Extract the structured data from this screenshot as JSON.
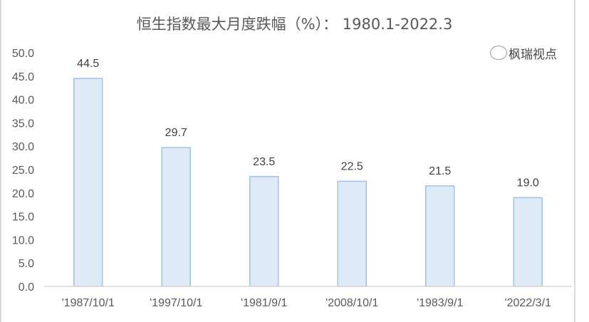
{
  "chart_data": {
    "type": "bar",
    "title": "恒生指数最大月度跌幅（%）： 1980.1-2022.3",
    "categories": [
      "'1987/10/1",
      "'1997/10/1",
      "'1981/9/1",
      "'2008/10/1",
      "'1983/9/1",
      "'2022/3/1"
    ],
    "values": [
      44.5,
      29.7,
      23.5,
      22.5,
      21.5,
      19.0
    ],
    "data_labels": [
      "44.5",
      "29.7",
      "23.5",
      "22.5",
      "21.5",
      "19.0"
    ],
    "yticks": [
      "0.0",
      "5.0",
      "10.0",
      "15.0",
      "20.0",
      "25.0",
      "30.0",
      "35.0",
      "40.0",
      "45.0",
      "50.0"
    ],
    "ylim": [
      0,
      50
    ],
    "xlabel": "",
    "ylabel": "",
    "grid": false,
    "colors": {
      "bar_fill": "#DEEAF6",
      "bar_stroke": "#9DC3E6",
      "axis": "#D9D9D9"
    }
  },
  "watermark": "枫瑞视点"
}
